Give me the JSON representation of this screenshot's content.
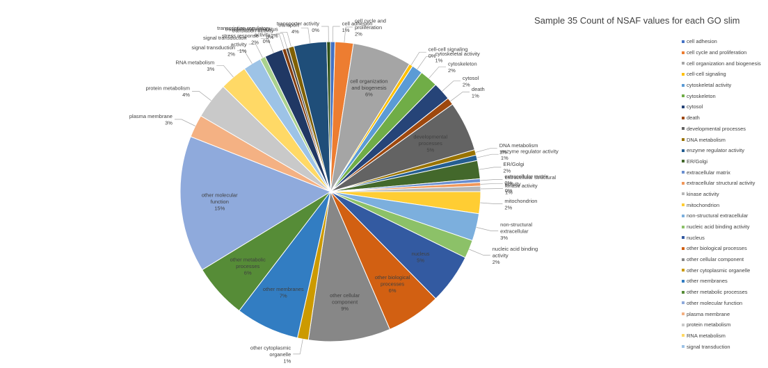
{
  "chart_data": {
    "type": "pie",
    "title": "Sample 35 Count of NSAF values for each GO slim",
    "legend_position": "right",
    "slices": [
      {
        "name": "cell adhesion",
        "label": "1%",
        "value": 0.5,
        "color": "#4472C4"
      },
      {
        "name": "cell cycle and proliferation",
        "label": "2%",
        "value": 2.0,
        "color": "#ED7D31"
      },
      {
        "name": "cell organization and biogenesis",
        "label": "6%",
        "value": 6.5,
        "color": "#A5A5A5"
      },
      {
        "name": "cell-cell signaling",
        "label": "0%",
        "value": 0.4,
        "color": "#FFC000"
      },
      {
        "name": "cytoskeletal activity",
        "label": "1%",
        "value": 1.2,
        "color": "#5B9BD5"
      },
      {
        "name": "cytoskeleton",
        "label": "2%",
        "value": 2.0,
        "color": "#70AD47"
      },
      {
        "name": "cytosol",
        "label": "2%",
        "value": 2.0,
        "color": "#264478"
      },
      {
        "name": "death",
        "label": "1%",
        "value": 0.8,
        "color": "#9E480E"
      },
      {
        "name": "developmental processes",
        "label": "5%",
        "value": 5.5,
        "color": "#636363"
      },
      {
        "name": "DNA metabolism",
        "label": "1%",
        "value": 0.6,
        "color": "#997300"
      },
      {
        "name": "enzyme regulator activity",
        "label": "1%",
        "value": 0.6,
        "color": "#255E91"
      },
      {
        "name": "ER/Golgi",
        "label": "2%",
        "value": 2.0,
        "color": "#43682B"
      },
      {
        "name": "extracellular matrix",
        "label": "0%",
        "value": 0.4,
        "color": "#698ED0"
      },
      {
        "name": "extracellular structural activity",
        "label": "0%",
        "value": 0.4,
        "color": "#F1975A"
      },
      {
        "name": "kinase activity",
        "label": "1%",
        "value": 0.6,
        "color": "#B7B7B7"
      },
      {
        "name": "mitochondrion",
        "label": "2%",
        "value": 2.4,
        "color": "#FFCD33"
      },
      {
        "name": "non-structural extracellular",
        "label": "3%",
        "value": 3.0,
        "color": "#7CAFDD"
      },
      {
        "name": "nucleic acid binding activity",
        "label": "2%",
        "value": 2.0,
        "color": "#8CC168"
      },
      {
        "name": "nucleus",
        "label": "5%",
        "value": 5.5,
        "color": "#335AA1"
      },
      {
        "name": "other biological processes",
        "label": "6%",
        "value": 6.0,
        "color": "#D26012"
      },
      {
        "name": "other cellular component",
        "label": "9%",
        "value": 9.0,
        "color": "#878787"
      },
      {
        "name": "other cytoplasmic organelle",
        "label": "1%",
        "value": 1.2,
        "color": "#CC9A00"
      },
      {
        "name": "other membranes",
        "label": "7%",
        "value": 7.0,
        "color": "#327DC2"
      },
      {
        "name": "other metabolic processes",
        "label": "6%",
        "value": 6.0,
        "color": "#568C37"
      },
      {
        "name": "other molecular function",
        "label": "15%",
        "value": 15.0,
        "color": "#8FAADC"
      },
      {
        "name": "plasma membrane",
        "label": "3%",
        "value": 2.5,
        "color": "#F4B183"
      },
      {
        "name": "protein metabolism",
        "label": "4%",
        "value": 4.0,
        "color": "#C9C9C9"
      },
      {
        "name": "RNA metabolism",
        "label": "3%",
        "value": 3.0,
        "color": "#FFD966"
      },
      {
        "name": "signal transduction",
        "label": "2%",
        "value": 2.0,
        "color": "#9DC3E6"
      },
      {
        "name": "signal transduction activity",
        "label": "1%",
        "value": 0.6,
        "color": "#A9D18E"
      },
      {
        "name": "stress response",
        "label": "2%",
        "value": 2.0,
        "color": "#203864"
      },
      {
        "name": "transcription regulatory activity",
        "label": "0%",
        "value": 0.4,
        "color": "#843C0C"
      },
      {
        "name": "translation activity",
        "label": "0%",
        "value": 0.3,
        "color": "#4A4A4A"
      },
      {
        "name": "translational apparatus",
        "label": "1%",
        "value": 0.6,
        "color": "#806000"
      },
      {
        "name": "transport",
        "label": "4%",
        "value": 3.6,
        "color": "#1F4E79"
      },
      {
        "name": "transporter activity",
        "label": "0%",
        "value": 0.4,
        "color": "#2E5018"
      }
    ],
    "legend": [
      "cell adhesion",
      "cell cycle and proliferation",
      "cell organization and biogenesis",
      "cell-cell signaling",
      "cytoskeletal activity",
      "cytoskeleton",
      "cytosol",
      "death",
      "developmental processes",
      "DNA metabolism",
      "enzyme regulator activity",
      "ER/Golgi",
      "extracellular matrix",
      "extracellular structural activity",
      "kinase activity",
      "mitochondrion",
      "non-structural extracellular",
      "nucleic acid binding activity",
      "nucleus",
      "other biological processes",
      "other cellular component",
      "other cytoplasmic organelle",
      "other membranes",
      "other metabolic processes",
      "other molecular function",
      "plasma membrane",
      "protein metabolism",
      "RNA metabolism",
      "signal transduction"
    ]
  }
}
